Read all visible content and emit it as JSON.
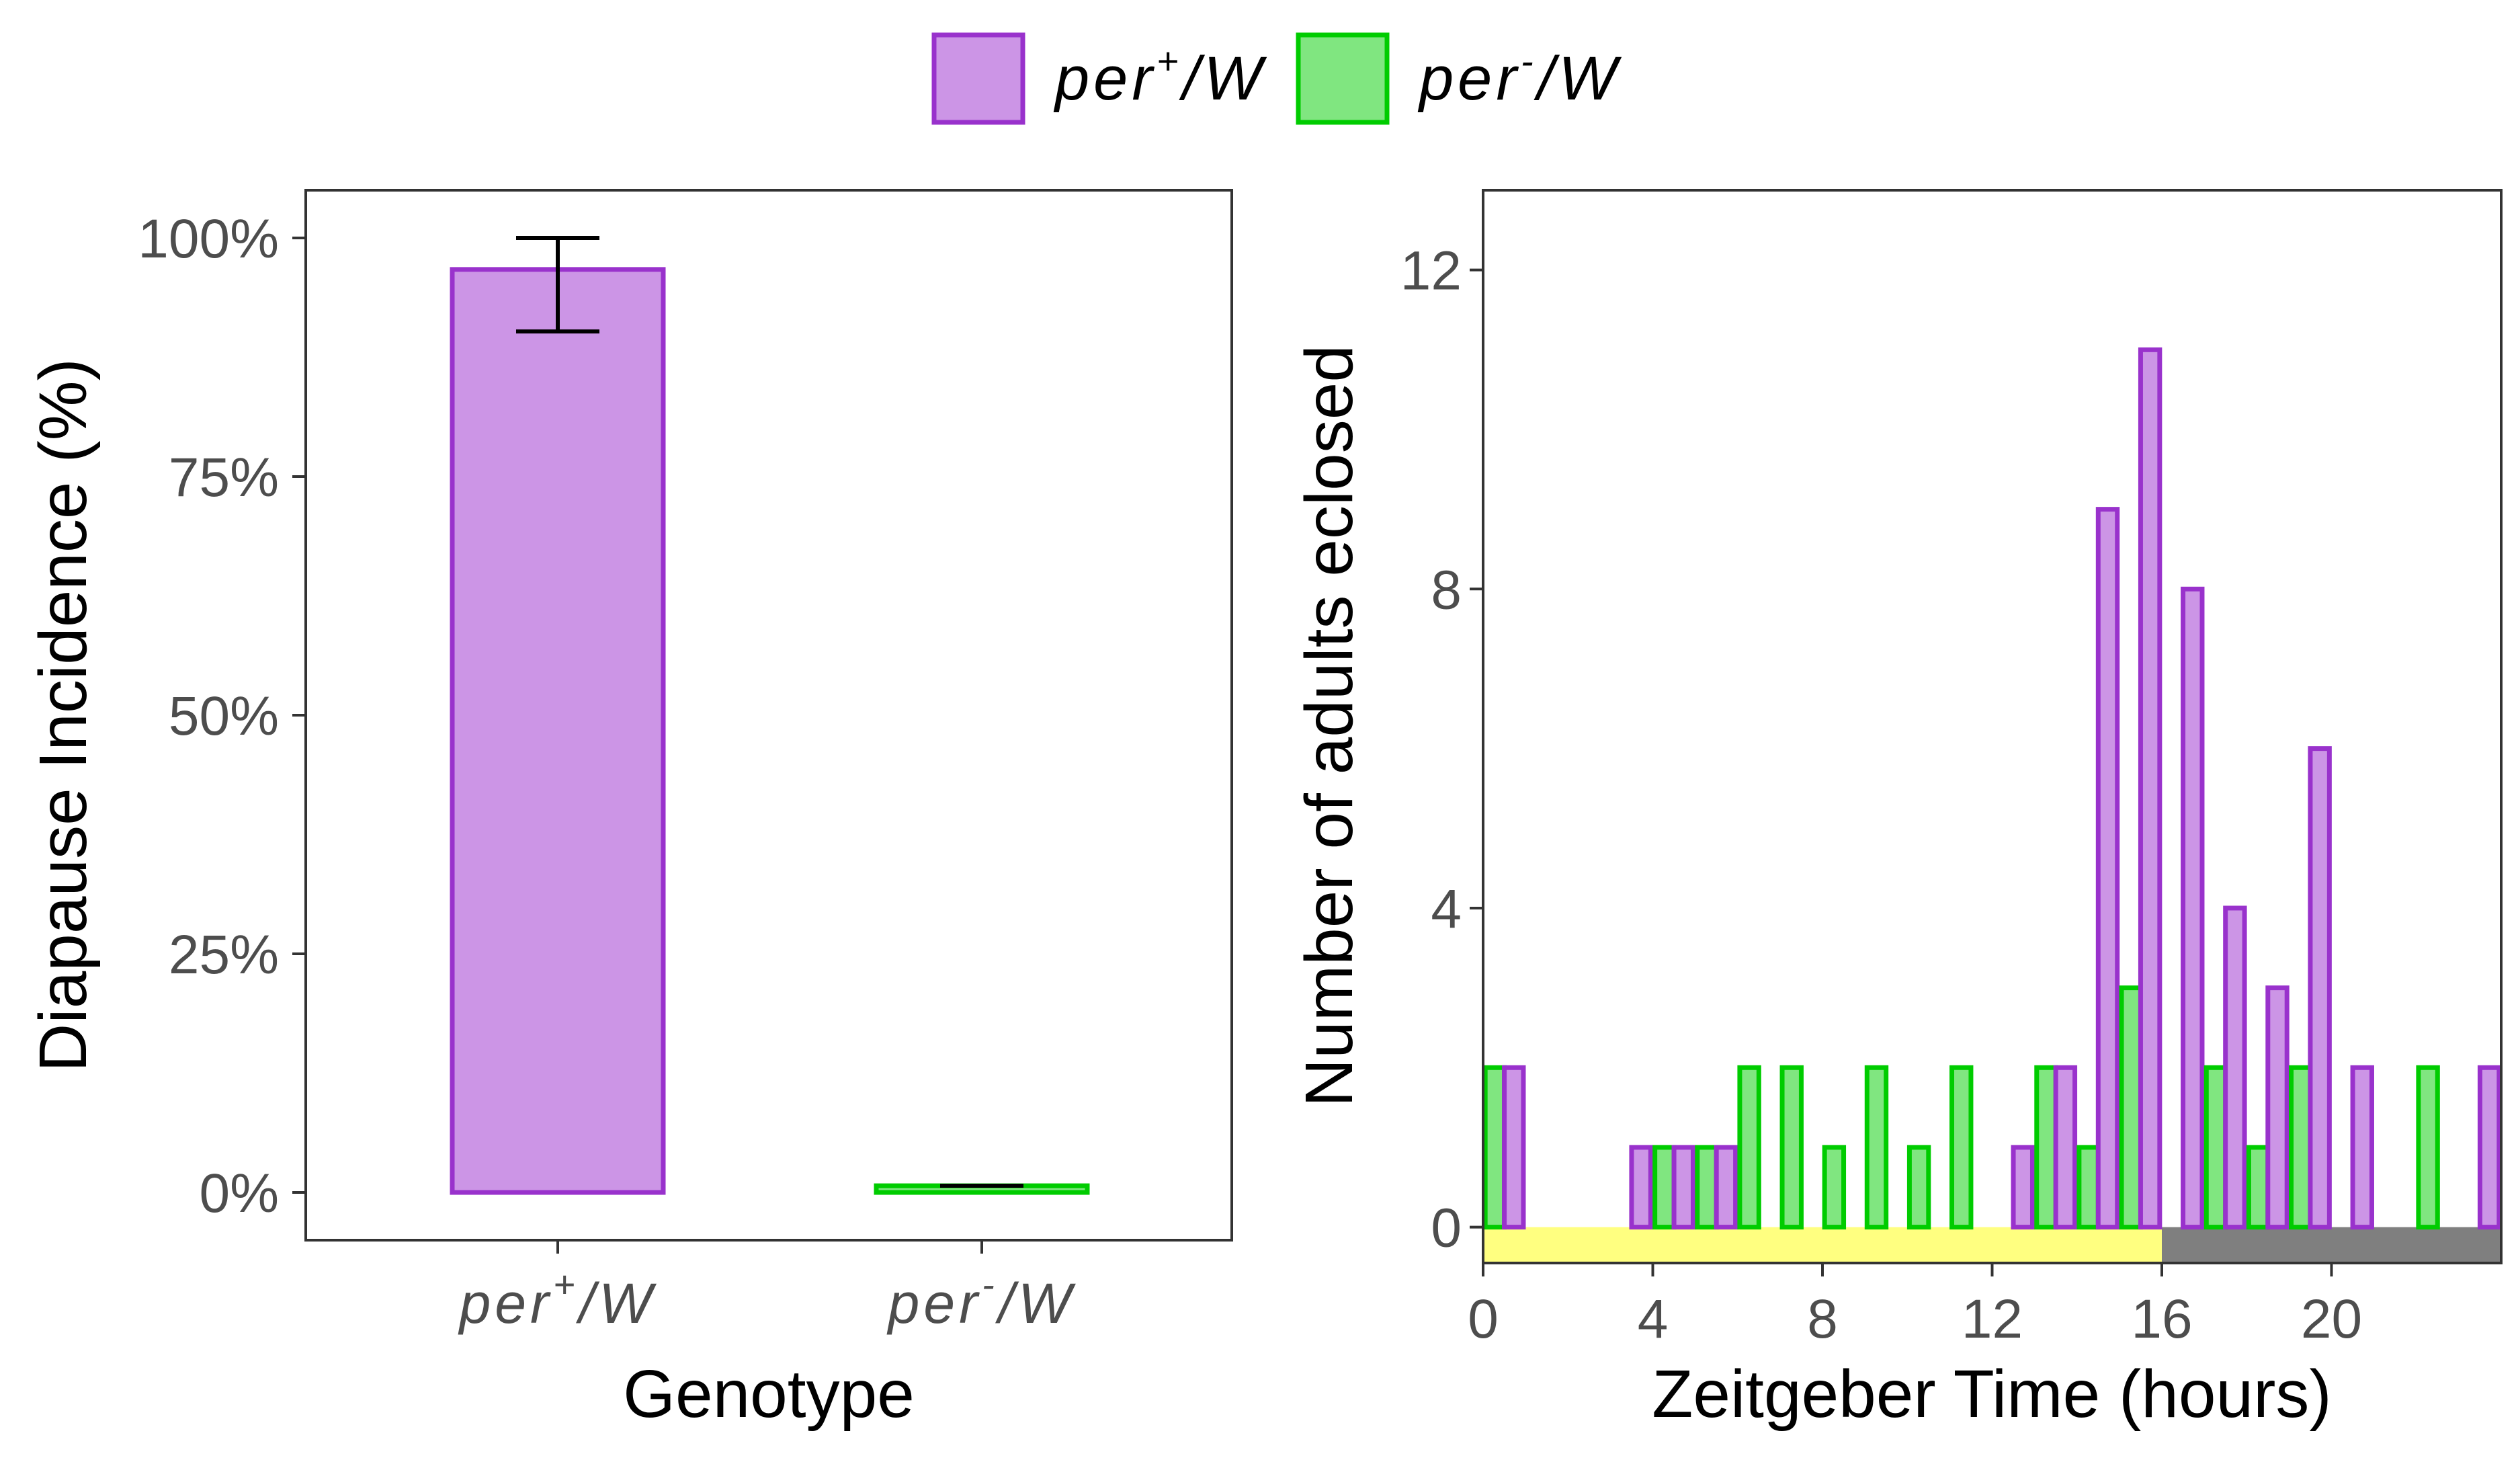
{
  "colors": {
    "per_plus_fill": "#cc95e6",
    "per_plus_stroke": "#9932cc",
    "per_minus_fill": "#80e680",
    "per_minus_stroke": "#00cc00",
    "light_phase": "#ffff80",
    "dark_phase": "#7f7f7f",
    "axis_text": "#4d4d4d"
  },
  "legend": {
    "items": [
      {
        "base": "per",
        "sup": "+",
        "tail": "/W",
        "series": "per+/W"
      },
      {
        "base": "per",
        "sup": "-",
        "tail": "/W",
        "series": "per-/W"
      }
    ],
    "placement": "top-center"
  },
  "chart_data": [
    {
      "type": "bar",
      "xlabel": "Genotype",
      "ylabel": "Diapause Incidence (%)",
      "categories": [
        {
          "base": "per",
          "sup": "+",
          "tail": "/W"
        },
        {
          "base": "per",
          "sup": "-",
          "tail": "/W"
        }
      ],
      "values": [
        96.7,
        0.7
      ],
      "error_bars": [
        [
          90.2,
          100
        ],
        [
          0.7,
          0.7
        ]
      ],
      "ylim": [
        -5,
        105
      ],
      "yticks": [
        0,
        25,
        50,
        75,
        100
      ],
      "ytick_labels": [
        "0%",
        "25%",
        "50%",
        "75%",
        "100%"
      ],
      "grid": false
    },
    {
      "type": "bar",
      "xlabel": "Zeitgeber Time (hours)",
      "ylabel": "Number of adults eclosed",
      "x": [
        0.5,
        1.5,
        2.5,
        3.5,
        4.5,
        5.5,
        6.5,
        7.5,
        8.5,
        9.5,
        10.5,
        11.5,
        12.5,
        13.5,
        14.5,
        15.5,
        16.5,
        17.5,
        18.5,
        19.5,
        20.5,
        21.5,
        22.5,
        23.5
      ],
      "series": [
        {
          "name": "per+/W",
          "values": [
            2,
            0,
            0,
            1,
            1,
            1,
            0,
            0,
            0,
            0,
            0,
            0,
            1,
            2,
            9,
            11,
            8,
            4,
            3,
            6,
            2,
            0,
            0,
            2
          ]
        },
        {
          "name": "per-/W",
          "values": [
            2,
            0,
            0,
            0,
            1,
            1,
            2,
            2,
            1,
            2,
            1,
            2,
            0,
            2,
            1,
            3,
            0,
            2,
            1,
            2,
            0,
            0,
            2,
            0
          ]
        }
      ],
      "xlim": [
        0,
        24
      ],
      "xticks": [
        0,
        4,
        8,
        12,
        16,
        20
      ],
      "ylim": [
        -0.45,
        13
      ],
      "yticks": [
        0,
        4,
        8,
        12
      ],
      "light_dark": {
        "light": [
          0,
          16
        ],
        "dark": [
          16,
          24
        ]
      },
      "grid": false
    }
  ]
}
